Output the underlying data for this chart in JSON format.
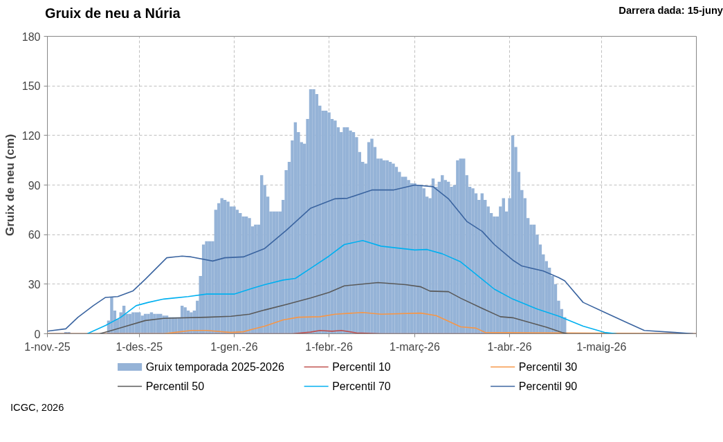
{
  "chart_data": {
    "type": "bar",
    "title": "Gruix de neu a Núria",
    "ylabel": "Gruix de neu (cm)",
    "annotations": [
      "Darrera dada: 15-juny",
      "ICGC, 2026"
    ],
    "xlim": [
      "2025-11-01",
      "2026-06-01"
    ],
    "xticks": [
      {
        "value": "2025-11-01",
        "label": "1-nov.-25"
      },
      {
        "value": "2025-12-01",
        "label": "1-des.-25"
      },
      {
        "value": "2026-01-01",
        "label": "1-gen.-26"
      },
      {
        "value": "2026-02-01",
        "label": "1-febr.-26"
      },
      {
        "value": "2026-03-01",
        "label": "1-març-26"
      },
      {
        "value": "2026-04-01",
        "label": "1-abr.-26"
      },
      {
        "value": "2026-05-01",
        "label": "1-maig-26"
      },
      {
        "value": "2026-06-01",
        "label": null
      }
    ],
    "ylim": [
      0,
      180
    ],
    "yticks": [
      0,
      30,
      60,
      90,
      120,
      150,
      180
    ],
    "grid": true,
    "legend": "bottom",
    "series": [
      {
        "name": "Gruix temporada 2025-2026",
        "color": "#95b3d7",
        "x": [
          "2025-11-07",
          "2025-11-08",
          "2025-11-21",
          "2025-11-22",
          "2025-11-23",
          "2025-11-24",
          "2025-11-25",
          "2025-11-26",
          "2025-11-27",
          "2025-11-28",
          "2025-11-29",
          "2025-11-30",
          "2025-12-01",
          "2025-12-02",
          "2025-12-03",
          "2025-12-04",
          "2025-12-05",
          "2025-12-06",
          "2025-12-07",
          "2025-12-08",
          "2025-12-09",
          "2025-12-10",
          "2025-12-11",
          "2025-12-12",
          "2025-12-13",
          "2025-12-14",
          "2025-12-15",
          "2025-12-16",
          "2025-12-17",
          "2025-12-18",
          "2025-12-19",
          "2025-12-20",
          "2025-12-21",
          "2025-12-22",
          "2025-12-23",
          "2025-12-24",
          "2025-12-25",
          "2025-12-26",
          "2025-12-27",
          "2025-12-28",
          "2025-12-29",
          "2025-12-30",
          "2025-12-31",
          "2026-01-01",
          "2026-01-02",
          "2026-01-03",
          "2026-01-04",
          "2026-01-05",
          "2026-01-06",
          "2026-01-07",
          "2026-01-08",
          "2026-01-09",
          "2026-01-10",
          "2026-01-11",
          "2026-01-12",
          "2026-01-13",
          "2026-01-14",
          "2026-01-15",
          "2026-01-16",
          "2026-01-17",
          "2026-01-18",
          "2026-01-19",
          "2026-01-20",
          "2026-01-21",
          "2026-01-22",
          "2026-01-23",
          "2026-01-24",
          "2026-01-25",
          "2026-01-26",
          "2026-01-27",
          "2026-01-28",
          "2026-01-29",
          "2026-01-30",
          "2026-01-31",
          "2026-02-01",
          "2026-02-02",
          "2026-02-03",
          "2026-02-04",
          "2026-02-05",
          "2026-02-06",
          "2026-02-07",
          "2026-02-08",
          "2026-02-09",
          "2026-02-10",
          "2026-02-11",
          "2026-02-12",
          "2026-02-13",
          "2026-02-14",
          "2026-02-15",
          "2026-02-16",
          "2026-02-17",
          "2026-02-18",
          "2026-02-19",
          "2026-02-20",
          "2026-02-21",
          "2026-02-22",
          "2026-02-23",
          "2026-02-24",
          "2026-02-25",
          "2026-02-26",
          "2026-02-27",
          "2026-02-28",
          "2026-03-01",
          "2026-03-02",
          "2026-03-03",
          "2026-03-04",
          "2026-03-05",
          "2026-03-06",
          "2026-03-07",
          "2026-03-08",
          "2026-03-09",
          "2026-03-10",
          "2026-03-11",
          "2026-03-12",
          "2026-03-13",
          "2026-03-14",
          "2026-03-15",
          "2026-03-16",
          "2026-03-17",
          "2026-03-18",
          "2026-03-19",
          "2026-03-20",
          "2026-03-21",
          "2026-03-22",
          "2026-03-23",
          "2026-03-24",
          "2026-03-25",
          "2026-03-26",
          "2026-03-27",
          "2026-03-28",
          "2026-03-29",
          "2026-03-30",
          "2026-03-31",
          "2026-04-01",
          "2026-04-02",
          "2026-04-03",
          "2026-04-04",
          "2026-04-05",
          "2026-04-06",
          "2026-04-07",
          "2026-04-08",
          "2026-04-09",
          "2026-04-10",
          "2026-04-11",
          "2026-04-12",
          "2026-04-13",
          "2026-04-14",
          "2026-04-15",
          "2026-04-16",
          "2026-04-17",
          "2026-04-18",
          "2026-04-19"
        ],
        "values": [
          1,
          1,
          8,
          22,
          14,
          9,
          13,
          17,
          12,
          12,
          13,
          13,
          13,
          11,
          12,
          12,
          13,
          12,
          12,
          12,
          11,
          11,
          10,
          10,
          10,
          10,
          17,
          16,
          14,
          13,
          14,
          20,
          35,
          54,
          56,
          56,
          56,
          75,
          79,
          82,
          81,
          80,
          77,
          77,
          75,
          73,
          71,
          71,
          70,
          65,
          66,
          66,
          96,
          90,
          83,
          74,
          74,
          74,
          74,
          81,
          99,
          104,
          117,
          128,
          122,
          116,
          115,
          130,
          148,
          148,
          145,
          138,
          135,
          135,
          134,
          130,
          129,
          125,
          122,
          125,
          125,
          123,
          122,
          119,
          110,
          104,
          103,
          116,
          118,
          113,
          106,
          106,
          105,
          105,
          104,
          103,
          101,
          98,
          95,
          95,
          93,
          91,
          91,
          90,
          90,
          88,
          83,
          82,
          94,
          89,
          92,
          96,
          93,
          92,
          89,
          90,
          105,
          106,
          106,
          96,
          89,
          88,
          85,
          81,
          85,
          81,
          77,
          73,
          71,
          71,
          77,
          82,
          74,
          82,
          120,
          113,
          98,
          87,
          82,
          70,
          66,
          66,
          60,
          54,
          48,
          44,
          40,
          35,
          30,
          20,
          15,
          10
        ]
      },
      {
        "name": "Percentil 10",
        "type": "line",
        "color": "#c0504d",
        "x": [
          "2025-11-01",
          "2026-01-20",
          "2026-01-26",
          "2026-01-29",
          "2026-02-02",
          "2026-02-05",
          "2026-02-10",
          "2026-02-18",
          "2026-06-01"
        ],
        "values": [
          0,
          0,
          1,
          2,
          1.5,
          2,
          0.5,
          0,
          0
        ]
      },
      {
        "name": "Percentil 30",
        "type": "line",
        "color": "#f79646",
        "x": [
          "2025-11-01",
          "2025-12-09",
          "2025-12-18",
          "2025-12-23",
          "2025-12-31",
          "2026-01-04",
          "2026-01-07",
          "2026-01-11",
          "2026-01-17",
          "2026-01-22",
          "2026-01-29",
          "2026-02-03",
          "2026-02-12",
          "2026-02-18",
          "2026-03-03",
          "2026-03-08",
          "2026-03-16",
          "2026-03-21",
          "2026-03-24",
          "2026-06-01"
        ],
        "values": [
          0,
          0,
          2,
          2,
          0.8,
          1.2,
          2.7,
          4.6,
          8.4,
          10,
          10.3,
          11.8,
          12.9,
          11.8,
          12.5,
          11,
          4.2,
          3.4,
          0.8,
          0
        ]
      },
      {
        "name": "Percentil 50",
        "type": "line",
        "color": "#595959",
        "x": [
          "2025-11-01",
          "2025-11-18",
          "2025-11-21",
          "2025-11-26",
          "2025-12-03",
          "2025-12-09",
          "2025-12-23",
          "2025-12-31",
          "2026-01-06",
          "2026-01-11",
          "2026-01-18",
          "2026-01-26",
          "2026-02-01",
          "2026-02-06",
          "2026-02-17",
          "2026-02-26",
          "2026-03-03",
          "2026-03-06",
          "2026-03-12",
          "2026-03-16",
          "2026-03-23",
          "2026-03-29",
          "2026-04-02",
          "2026-04-07",
          "2026-04-13",
          "2026-04-18",
          "2026-04-20",
          "2026-06-01"
        ],
        "values": [
          0,
          0,
          1.5,
          4.2,
          8,
          9.3,
          10,
          10.6,
          11.8,
          14.4,
          17.7,
          21.7,
          25,
          29,
          31,
          29.7,
          28.4,
          25.8,
          25.5,
          21.5,
          15.4,
          10.3,
          9.7,
          7.1,
          4,
          0.8,
          0,
          0
        ]
      },
      {
        "name": "Percentil 70",
        "type": "line",
        "color": "#00b0f0",
        "x": [
          "2025-11-14",
          "2025-11-20",
          "2025-11-25",
          "2025-11-30",
          "2025-12-04",
          "2025-12-09",
          "2025-12-17",
          "2025-12-23",
          "2026-01-01",
          "2026-01-07",
          "2026-01-11",
          "2026-01-17",
          "2026-01-21",
          "2026-01-26",
          "2026-02-01",
          "2026-02-06",
          "2026-02-12",
          "2026-02-18",
          "2026-03-01",
          "2026-03-05",
          "2026-03-10",
          "2026-03-16",
          "2026-03-23",
          "2026-03-27",
          "2026-04-02",
          "2026-04-10",
          "2026-04-17",
          "2026-04-20",
          "2026-04-25",
          "2026-05-02",
          "2026-05-06"
        ],
        "values": [
          0,
          5,
          10,
          17,
          19,
          21,
          22.5,
          24,
          24,
          27.5,
          29.7,
          32.5,
          33.5,
          39.6,
          47,
          54,
          56.4,
          53,
          50.7,
          51,
          48.4,
          43.5,
          33,
          27,
          21,
          15,
          10.7,
          8.4,
          4.6,
          0.8,
          0
        ]
      },
      {
        "name": "Percentil 90",
        "type": "line",
        "color": "#3a64a0",
        "x": [
          "2025-11-01",
          "2025-11-07",
          "2025-11-11",
          "2025-11-16",
          "2025-11-20",
          "2025-11-24",
          "2025-11-29",
          "2025-12-03",
          "2025-12-10",
          "2025-12-15",
          "2025-12-18",
          "2025-12-25",
          "2025-12-29",
          "2026-01-04",
          "2026-01-11",
          "2026-01-18",
          "2026-01-26",
          "2026-02-03",
          "2026-02-07",
          "2026-02-15",
          "2026-02-22",
          "2026-03-01",
          "2026-03-07",
          "2026-03-12",
          "2026-03-16",
          "2026-03-18",
          "2026-03-23",
          "2026-03-27",
          "2026-04-02",
          "2026-04-05",
          "2026-04-12",
          "2026-04-17",
          "2026-04-19",
          "2026-04-25",
          "2026-05-02",
          "2026-05-09",
          "2026-05-15",
          "2026-05-25",
          "2026-05-31"
        ],
        "values": [
          1.6,
          3,
          10,
          17,
          22,
          22.5,
          26,
          33,
          46,
          47,
          46.5,
          44,
          46,
          46.5,
          51.6,
          62.5,
          76,
          81.7,
          82,
          87,
          87,
          90,
          89,
          81.7,
          72.6,
          68,
          62,
          54,
          44.6,
          41,
          38,
          34,
          32,
          19,
          13,
          7,
          2,
          0.8,
          0
        ]
      }
    ]
  }
}
